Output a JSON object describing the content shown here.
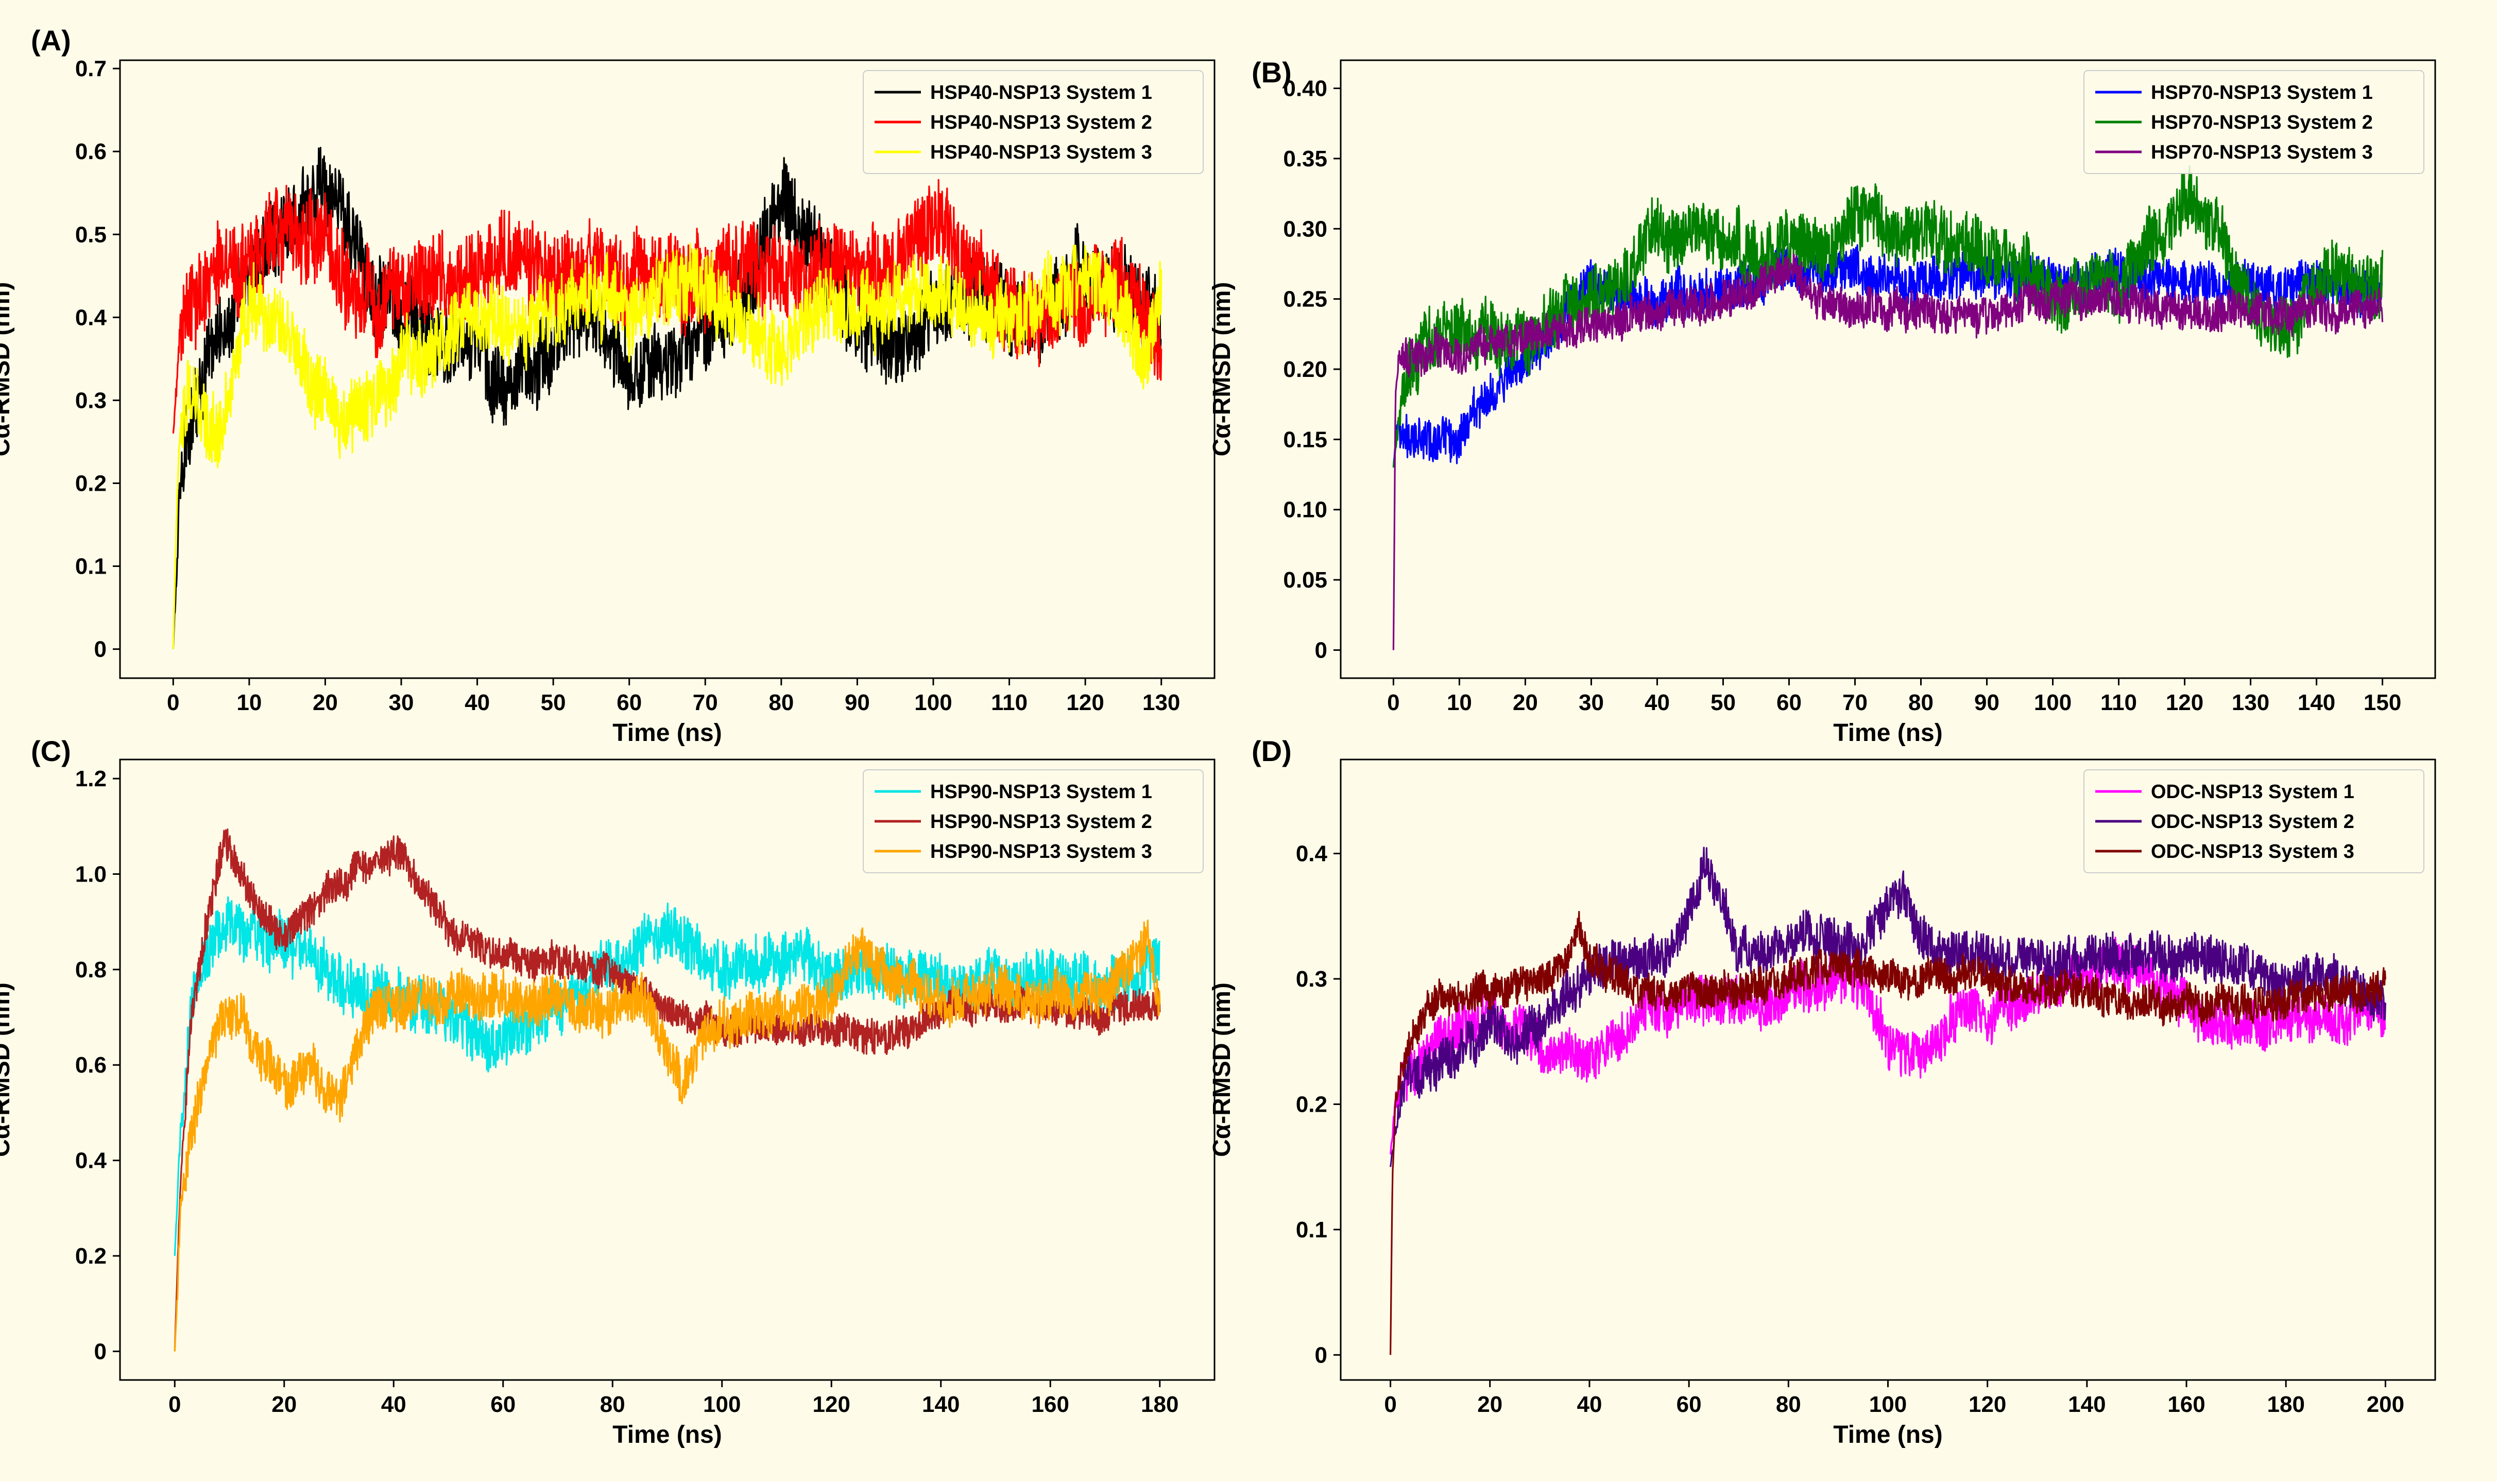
{
  "colors": {
    "figure_background": "#fefce9",
    "plot_background": "#fefce9",
    "axis": "#000000"
  },
  "chart_data": [
    {
      "panel_label": "(A)",
      "type": "line",
      "xlabel": "Time (ns)",
      "ylabel": "Cα-RMSD (nm)",
      "xlim": [
        -7,
        137
      ],
      "ylim": [
        -0.035,
        0.71
      ],
      "xticks": [
        0,
        10,
        20,
        30,
        40,
        50,
        60,
        70,
        80,
        90,
        100,
        110,
        120,
        130
      ],
      "xtick_labels": [
        "0",
        "10",
        "20",
        "30",
        "40",
        "50",
        "60",
        "70",
        "80",
        "90",
        "100",
        "110",
        "120",
        "130"
      ],
      "yticks": [
        0,
        0.1,
        0.2,
        0.3,
        0.4,
        0.5,
        0.6,
        0.7
      ],
      "ytick_labels": [
        "0",
        "0.1",
        "0.2",
        "0.3",
        "0.4",
        "0.5",
        "0.6",
        "0.7"
      ],
      "legend_position": "top-right",
      "series": [
        {
          "name": "HSP40-NSP13 System 1",
          "color": "#000000",
          "x": [
            0,
            1,
            2,
            4,
            6,
            8,
            10,
            13,
            16,
            19,
            22,
            25,
            30,
            35,
            40,
            44,
            48,
            52,
            56,
            60,
            65,
            70,
            75,
            80,
            85,
            90,
            95,
            100,
            105,
            110,
            115,
            120,
            125,
            130
          ],
          "y": [
            0,
            0.22,
            0.26,
            0.34,
            0.38,
            0.42,
            0.45,
            0.49,
            0.52,
            0.55,
            0.53,
            0.46,
            0.4,
            0.38,
            0.36,
            0.3,
            0.34,
            0.39,
            0.4,
            0.33,
            0.34,
            0.38,
            0.42,
            0.54,
            0.48,
            0.38,
            0.36,
            0.4,
            0.42,
            0.41,
            0.4,
            0.46,
            0.42,
            0.38
          ],
          "amp": 0.055
        },
        {
          "name": "HSP40-NSP13 System 2",
          "color": "#ff0000",
          "x": [
            0,
            1,
            2,
            4,
            6,
            8,
            10,
            13,
            16,
            20,
            25,
            30,
            35,
            40,
            45,
            50,
            55,
            60,
            65,
            70,
            75,
            80,
            85,
            90,
            95,
            100,
            105,
            110,
            115,
            120,
            125,
            130
          ],
          "y": [
            0.26,
            0.38,
            0.4,
            0.42,
            0.44,
            0.45,
            0.46,
            0.52,
            0.49,
            0.5,
            0.42,
            0.42,
            0.45,
            0.46,
            0.48,
            0.45,
            0.46,
            0.44,
            0.46,
            0.43,
            0.46,
            0.44,
            0.46,
            0.45,
            0.46,
            0.52,
            0.46,
            0.42,
            0.4,
            0.42,
            0.44,
            0.36
          ],
          "amp": 0.06
        },
        {
          "name": "HSP40-NSP13 System 3",
          "color": "#ffff00",
          "x": [
            0,
            0.5,
            1,
            2,
            4,
            6,
            8,
            10,
            14,
            18,
            22,
            26,
            30,
            35,
            40,
            45,
            50,
            55,
            60,
            65,
            70,
            75,
            80,
            85,
            90,
            95,
            100,
            105,
            110,
            115,
            120,
            125,
            128,
            130
          ],
          "y": [
            0,
            0.18,
            0.26,
            0.32,
            0.28,
            0.25,
            0.34,
            0.42,
            0.4,
            0.33,
            0.28,
            0.3,
            0.34,
            0.38,
            0.4,
            0.38,
            0.42,
            0.43,
            0.4,
            0.44,
            0.45,
            0.4,
            0.36,
            0.42,
            0.4,
            0.42,
            0.44,
            0.4,
            0.4,
            0.43,
            0.44,
            0.41,
            0.35,
            0.42
          ],
          "amp": 0.05
        }
      ]
    },
    {
      "panel_label": "(B)",
      "type": "line",
      "xlabel": "Time (ns)",
      "ylabel": "Cα-RMSD (nm)",
      "xlim": [
        -8,
        158
      ],
      "ylim": [
        -0.02,
        0.42
      ],
      "xticks": [
        0,
        10,
        20,
        30,
        40,
        50,
        60,
        70,
        80,
        90,
        100,
        110,
        120,
        130,
        140,
        150
      ],
      "xtick_labels": [
        "0",
        "10",
        "20",
        "30",
        "40",
        "50",
        "60",
        "70",
        "80",
        "90",
        "100",
        "110",
        "120",
        "130",
        "140",
        "150"
      ],
      "yticks": [
        0,
        0.05,
        0.1,
        0.15,
        0.2,
        0.25,
        0.3,
        0.35,
        0.4
      ],
      "ytick_labels": [
        "0",
        "0.05",
        "0.10",
        "0.15",
        "0.20",
        "0.25",
        "0.30",
        "0.35",
        "0.40"
      ],
      "legend_position": "top-right",
      "series": [
        {
          "name": "HSP70-NSP13 System 1",
          "color": "#0000ff",
          "x": [
            0,
            0.5,
            1,
            3,
            6,
            10,
            14,
            18,
            22,
            26,
            30,
            35,
            40,
            50,
            60,
            70,
            80,
            90,
            100,
            110,
            120,
            130,
            140,
            150
          ],
          "y": [
            0.13,
            0.16,
            0.15,
            0.155,
            0.15,
            0.15,
            0.18,
            0.2,
            0.21,
            0.24,
            0.26,
            0.25,
            0.25,
            0.26,
            0.27,
            0.27,
            0.26,
            0.27,
            0.26,
            0.27,
            0.26,
            0.26,
            0.26,
            0.25
          ],
          "amp": 0.018
        },
        {
          "name": "HSP70-NSP13 System 2",
          "color": "#008000",
          "x": [
            0,
            0.5,
            2,
            5,
            10,
            15,
            20,
            25,
            30,
            35,
            40,
            45,
            50,
            55,
            60,
            65,
            70,
            75,
            80,
            85,
            90,
            95,
            100,
            105,
            110,
            115,
            120,
            125,
            130,
            135,
            140,
            145,
            150
          ],
          "y": [
            0.13,
            0.15,
            0.2,
            0.22,
            0.23,
            0.22,
            0.22,
            0.24,
            0.25,
            0.27,
            0.3,
            0.3,
            0.29,
            0.28,
            0.29,
            0.28,
            0.31,
            0.3,
            0.3,
            0.29,
            0.28,
            0.27,
            0.25,
            0.26,
            0.26,
            0.29,
            0.32,
            0.3,
            0.24,
            0.23,
            0.26,
            0.27,
            0.26
          ],
          "amp": 0.025
        },
        {
          "name": "HSP70-NSP13 System 3",
          "color": "#800080",
          "x": [
            0,
            0.3,
            0.8,
            2,
            5,
            10,
            15,
            20,
            25,
            30,
            40,
            50,
            55,
            60,
            65,
            70,
            80,
            90,
            100,
            110,
            120,
            130,
            140,
            150
          ],
          "y": [
            0,
            0.18,
            0.21,
            0.21,
            0.21,
            0.21,
            0.22,
            0.22,
            0.23,
            0.23,
            0.24,
            0.25,
            0.26,
            0.27,
            0.25,
            0.24,
            0.24,
            0.24,
            0.25,
            0.25,
            0.24,
            0.24,
            0.24,
            0.24
          ],
          "amp": 0.015
        }
      ]
    },
    {
      "panel_label": "(C)",
      "type": "line",
      "xlabel": "Time (ns)",
      "ylabel": "Cα-RMSD (nm)",
      "xlim": [
        -10,
        190
      ],
      "ylim": [
        -0.06,
        1.24
      ],
      "xticks": [
        0,
        20,
        40,
        60,
        80,
        100,
        120,
        140,
        160,
        180
      ],
      "xtick_labels": [
        "0",
        "20",
        "40",
        "60",
        "80",
        "100",
        "120",
        "140",
        "160",
        "180"
      ],
      "yticks": [
        0,
        0.2,
        0.4,
        0.6,
        0.8,
        1.0,
        1.2
      ],
      "ytick_labels": [
        "0",
        "0.2",
        "0.4",
        "0.6",
        "0.8",
        "1.0",
        "1.2"
      ],
      "legend_position": "top-right",
      "series": [
        {
          "name": "HSP90-NSP13 System 1",
          "color": "#00e5e5",
          "x": [
            0,
            1,
            3,
            5,
            8,
            12,
            16,
            20,
            25,
            30,
            35,
            40,
            50,
            55,
            60,
            65,
            70,
            80,
            90,
            95,
            100,
            105,
            110,
            120,
            130,
            140,
            150,
            160,
            170,
            180
          ],
          "y": [
            0.2,
            0.45,
            0.7,
            0.82,
            0.88,
            0.9,
            0.86,
            0.85,
            0.82,
            0.78,
            0.76,
            0.74,
            0.7,
            0.66,
            0.65,
            0.68,
            0.7,
            0.82,
            0.88,
            0.84,
            0.8,
            0.83,
            0.82,
            0.8,
            0.8,
            0.78,
            0.78,
            0.78,
            0.77,
            0.8
          ],
          "amp": 0.065
        },
        {
          "name": "HSP90-NSP13 System 2",
          "color": "#b22222",
          "x": [
            0,
            1,
            3,
            6,
            9,
            12,
            15,
            20,
            25,
            30,
            35,
            40,
            45,
            50,
            55,
            60,
            70,
            80,
            90,
            95,
            100,
            110,
            120,
            130,
            135,
            140,
            150,
            160,
            170,
            180
          ],
          "y": [
            0,
            0.35,
            0.7,
            0.9,
            1.07,
            1.0,
            0.92,
            0.88,
            0.92,
            0.98,
            1.02,
            1.04,
            0.98,
            0.88,
            0.86,
            0.82,
            0.82,
            0.8,
            0.72,
            0.7,
            0.68,
            0.68,
            0.68,
            0.66,
            0.68,
            0.72,
            0.72,
            0.72,
            0.7,
            0.73
          ],
          "amp": 0.04
        },
        {
          "name": "HSP90-NSP13 System 3",
          "color": "#ffa500",
          "x": [
            0,
            0.5,
            1,
            3,
            5,
            8,
            12,
            16,
            20,
            25,
            30,
            35,
            40,
            50,
            60,
            70,
            80,
            85,
            90,
            93,
            96,
            100,
            110,
            120,
            125,
            130,
            140,
            150,
            160,
            170,
            178,
            180
          ],
          "y": [
            0,
            0.12,
            0.3,
            0.45,
            0.56,
            0.68,
            0.7,
            0.62,
            0.55,
            0.6,
            0.52,
            0.7,
            0.72,
            0.74,
            0.74,
            0.72,
            0.72,
            0.75,
            0.62,
            0.56,
            0.64,
            0.68,
            0.72,
            0.74,
            0.84,
            0.78,
            0.74,
            0.75,
            0.74,
            0.76,
            0.86,
            0.74
          ],
          "amp": 0.055
        }
      ]
    },
    {
      "panel_label": "(D)",
      "type": "line",
      "xlabel": "Time (ns)",
      "ylabel": "Cα-RMSD (nm)",
      "xlim": [
        -10,
        210
      ],
      "ylim": [
        -0.02,
        0.475
      ],
      "xticks": [
        0,
        20,
        40,
        60,
        80,
        100,
        120,
        140,
        160,
        180,
        200
      ],
      "xtick_labels": [
        "0",
        "20",
        "40",
        "60",
        "80",
        "100",
        "120",
        "140",
        "160",
        "180",
        "200"
      ],
      "yticks": [
        0,
        0.1,
        0.2,
        0.3,
        0.4
      ],
      "ytick_labels": [
        "0",
        "0.1",
        "0.2",
        "0.3",
        "0.4"
      ],
      "legend_position": "top-right",
      "series": [
        {
          "name": "ODC-NSP13 System 1",
          "color": "#ff00ff",
          "x": [
            0,
            1,
            3,
            6,
            10,
            15,
            20,
            25,
            30,
            35,
            40,
            45,
            50,
            60,
            70,
            80,
            90,
            95,
            100,
            105,
            110,
            115,
            120,
            130,
            140,
            150,
            160,
            170,
            180,
            190,
            200
          ],
          "y": [
            0.16,
            0.2,
            0.22,
            0.24,
            0.25,
            0.26,
            0.27,
            0.26,
            0.25,
            0.24,
            0.23,
            0.25,
            0.27,
            0.28,
            0.28,
            0.29,
            0.3,
            0.3,
            0.25,
            0.24,
            0.25,
            0.28,
            0.27,
            0.29,
            0.31,
            0.31,
            0.28,
            0.26,
            0.27,
            0.27,
            0.27
          ],
          "amp": 0.022
        },
        {
          "name": "ODC-NSP13 System 2",
          "color": "#4b0082",
          "x": [
            0,
            1,
            3,
            6,
            10,
            15,
            20,
            25,
            30,
            40,
            45,
            50,
            55,
            60,
            63,
            66,
            70,
            75,
            80,
            90,
            95,
            100,
            103,
            106,
            110,
            120,
            130,
            140,
            150,
            160,
            170,
            180,
            190,
            200
          ],
          "y": [
            0.15,
            0.18,
            0.22,
            0.22,
            0.23,
            0.25,
            0.26,
            0.25,
            0.26,
            0.3,
            0.32,
            0.31,
            0.32,
            0.35,
            0.39,
            0.37,
            0.32,
            0.32,
            0.33,
            0.33,
            0.33,
            0.36,
            0.37,
            0.33,
            0.32,
            0.32,
            0.31,
            0.32,
            0.32,
            0.32,
            0.31,
            0.3,
            0.3,
            0.28
          ],
          "amp": 0.02
        },
        {
          "name": "ODC-NSP13 System 3",
          "color": "#800000",
          "x": [
            0,
            0.4,
            1,
            3,
            6,
            10,
            15,
            20,
            30,
            35,
            38,
            40,
            45,
            50,
            60,
            70,
            80,
            90,
            95,
            100,
            110,
            120,
            130,
            140,
            150,
            160,
            170,
            180,
            190,
            200
          ],
          "y": [
            0,
            0.14,
            0.2,
            0.24,
            0.27,
            0.29,
            0.29,
            0.29,
            0.3,
            0.31,
            0.34,
            0.31,
            0.3,
            0.29,
            0.29,
            0.29,
            0.3,
            0.31,
            0.31,
            0.3,
            0.3,
            0.3,
            0.29,
            0.29,
            0.28,
            0.28,
            0.28,
            0.28,
            0.29,
            0.29
          ],
          "amp": 0.016
        }
      ]
    }
  ]
}
